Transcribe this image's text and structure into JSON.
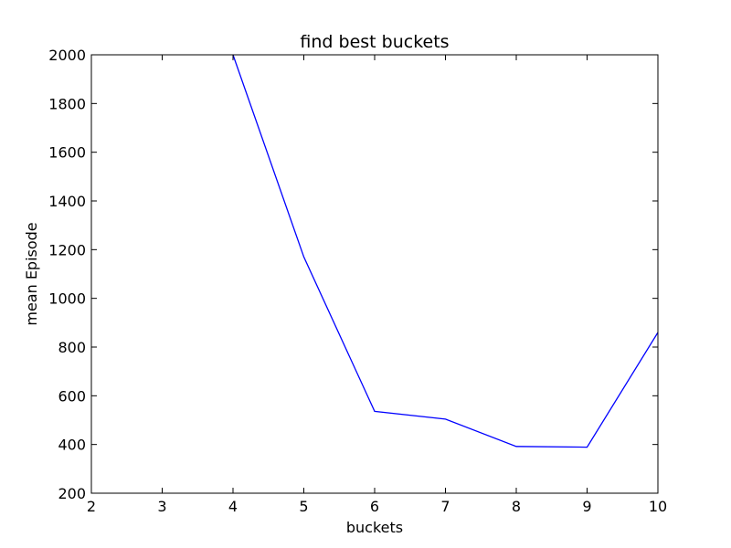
{
  "chart_data": {
    "type": "line",
    "title": "find best buckets",
    "xlabel": "buckets",
    "ylabel": "mean Episode",
    "xlim": [
      2,
      10
    ],
    "ylim": [
      200,
      2000
    ],
    "xticks": [
      "2",
      "3",
      "4",
      "5",
      "6",
      "7",
      "8",
      "9",
      "10"
    ],
    "yticks": [
      "200",
      "400",
      "600",
      "800",
      "1000",
      "1200",
      "1400",
      "1600",
      "1800",
      "2000"
    ],
    "grid": false,
    "series": [
      {
        "color": "#0000ff",
        "x": [
          4,
          5,
          6,
          7,
          8,
          9,
          10
        ],
        "y": [
          2000,
          1170,
          536,
          504,
          392,
          389,
          860
        ]
      }
    ]
  }
}
